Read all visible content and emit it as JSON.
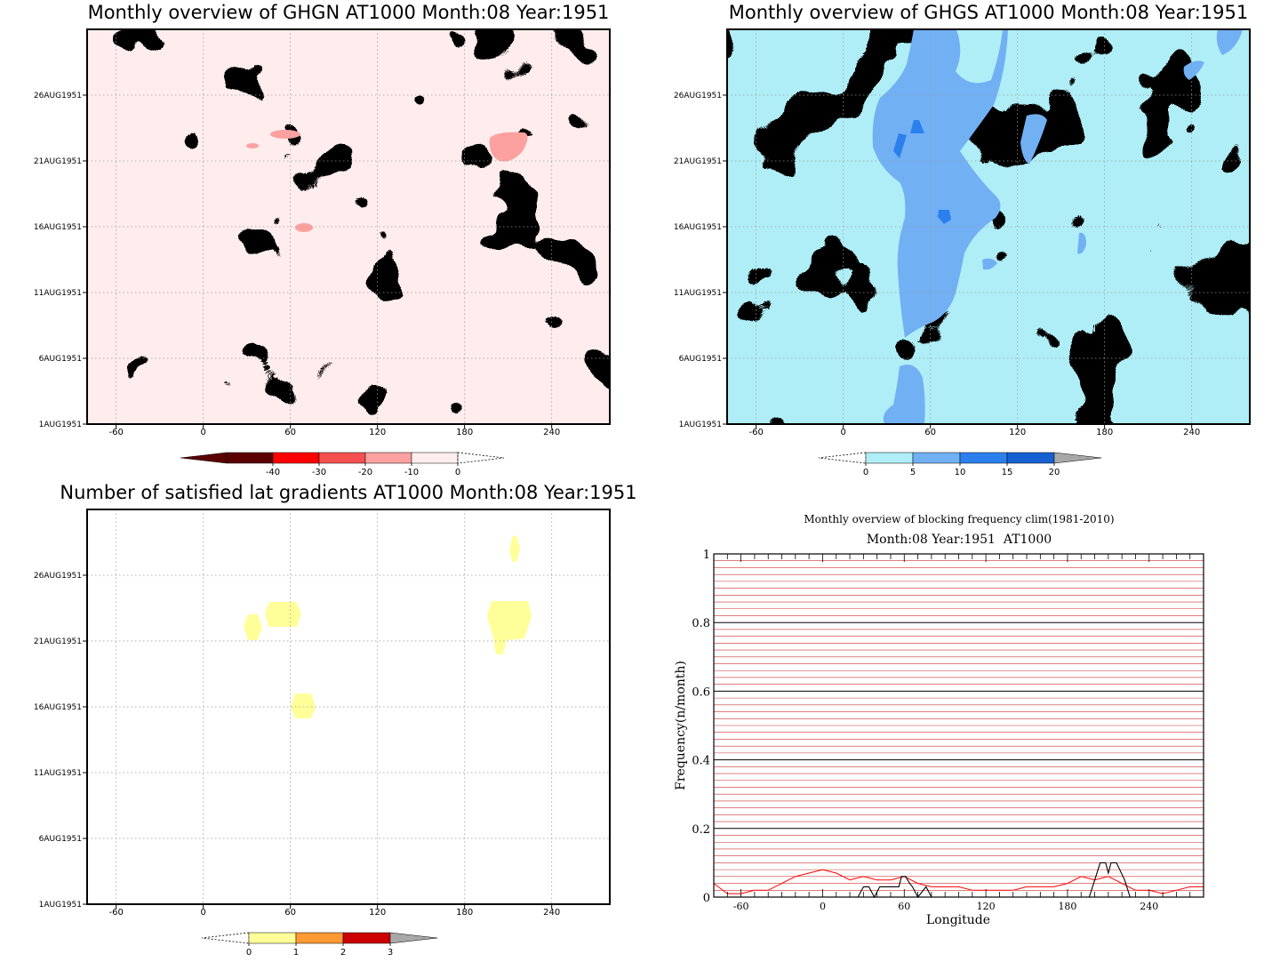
{
  "chart_data": [
    {
      "type": "heatmap",
      "title": "Monthly overview of GHGN AT1000 Month:08 Year:1951",
      "x_ticks": [
        "-60",
        "0",
        "60",
        "120",
        "180",
        "240"
      ],
      "x_values": [
        -60,
        0,
        60,
        120,
        180,
        240
      ],
      "xlim": [
        -80,
        280
      ],
      "y_ticks": [
        "1AUG1951",
        "6AUG1951",
        "11AUG1951",
        "16AUG1951",
        "21AUG1951",
        "26AUG1951"
      ],
      "colorbar": {
        "labels": [
          "-40",
          "-30",
          "-20",
          "-10",
          "0"
        ],
        "colors": [
          "#5a0000",
          "#ff0000",
          "#f45050",
          "#fca0a0",
          "#ffeded"
        ],
        "triangle_low": "#5a0000",
        "triangle_high": "none"
      },
      "grid": true
    },
    {
      "type": "heatmap",
      "title": "Monthly overview of GHGS AT1000 Month:08 Year:1951",
      "x_ticks": [
        "-60",
        "0",
        "60",
        "120",
        "180",
        "240"
      ],
      "x_values": [
        -60,
        0,
        60,
        120,
        180,
        240
      ],
      "xlim": [
        -80,
        280
      ],
      "y_ticks": [
        "1AUG1951",
        "6AUG1951",
        "11AUG1951",
        "16AUG1951",
        "21AUG1951",
        "26AUG1951"
      ],
      "colorbar": {
        "labels": [
          "0",
          "5",
          "10",
          "15",
          "20"
        ],
        "colors": [
          "#b0eef7",
          "#72b0f4",
          "#2b80ee",
          "#1460d0"
        ],
        "triangle_low": "none",
        "triangle_high": "#a8a8a8"
      },
      "grid": true
    },
    {
      "type": "heatmap",
      "title": "Number of satisfied lat gradients AT1000 Month:08 Year:1951",
      "x_ticks": [
        "-60",
        "0",
        "60",
        "120",
        "180",
        "240"
      ],
      "x_values": [
        -60,
        0,
        60,
        120,
        180,
        240
      ],
      "xlim": [
        -80,
        280
      ],
      "y_ticks": [
        "1AUG1951",
        "6AUG1951",
        "11AUG1951",
        "16AUG1951",
        "21AUG1951",
        "26AUG1951"
      ],
      "colorbar": {
        "labels": [
          "0",
          "1",
          "2",
          "3"
        ],
        "colors": [
          "#ffff99",
          "#ff9933",
          "#cc0000"
        ],
        "triangle_low": "none",
        "triangle_high": "#a8a8a8"
      },
      "grid": true
    },
    {
      "type": "line",
      "title": "Monthly overview of blocking frequency clim(1981-2010)",
      "subtitle": "Month:08 Year:1951  AT1000",
      "xlabel": "Longitude",
      "ylabel": "Frequency(n/month)",
      "xlim": [
        -80,
        280
      ],
      "ylim": [
        0,
        1
      ],
      "x_ticks": [
        "-60",
        "0",
        "60",
        "120",
        "180",
        "240"
      ],
      "x_values": [
        -60,
        0,
        60,
        120,
        180,
        240
      ],
      "y_ticks": [
        "0",
        "0.2",
        "0.4",
        "0.6",
        "0.8",
        "1"
      ],
      "y_values": [
        0,
        0.2,
        0.4,
        0.6,
        0.8,
        1
      ],
      "series": [
        {
          "color": "#ff0000",
          "x": [
            -80,
            -70,
            -60,
            -50,
            -40,
            -30,
            -20,
            -10,
            0,
            10,
            20,
            30,
            40,
            50,
            60,
            70,
            80,
            90,
            100,
            110,
            120,
            130,
            140,
            150,
            160,
            170,
            180,
            190,
            200,
            210,
            220,
            230,
            240,
            250,
            260,
            270,
            280
          ],
          "values": [
            0.04,
            0.01,
            0.01,
            0.02,
            0.02,
            0.04,
            0.06,
            0.07,
            0.08,
            0.07,
            0.05,
            0.06,
            0.05,
            0.05,
            0.06,
            0.04,
            0.03,
            0.03,
            0.03,
            0.02,
            0.02,
            0.02,
            0.02,
            0.03,
            0.03,
            0.03,
            0.04,
            0.06,
            0.05,
            0.06,
            0.04,
            0.02,
            0.02,
            0.01,
            0.02,
            0.03,
            0.03
          ]
        },
        {
          "color": "#000000",
          "x": [
            -80,
            20,
            26,
            30,
            34,
            38,
            42,
            56,
            58,
            61,
            64,
            66,
            70,
            76,
            80,
            196,
            200,
            204,
            208,
            210,
            212,
            216,
            222,
            226,
            280
          ],
          "values": [
            0,
            0,
            0,
            0.03,
            0.03,
            0,
            0.03,
            0.03,
            0.06,
            0.06,
            0.04,
            0.03,
            0,
            0.03,
            0,
            0,
            0.05,
            0.1,
            0.1,
            0.07,
            0.1,
            0.1,
            0.05,
            0,
            0
          ]
        }
      ],
      "gridline_colors": [
        "#000000",
        "#cc3333"
      ],
      "grid": true
    }
  ]
}
